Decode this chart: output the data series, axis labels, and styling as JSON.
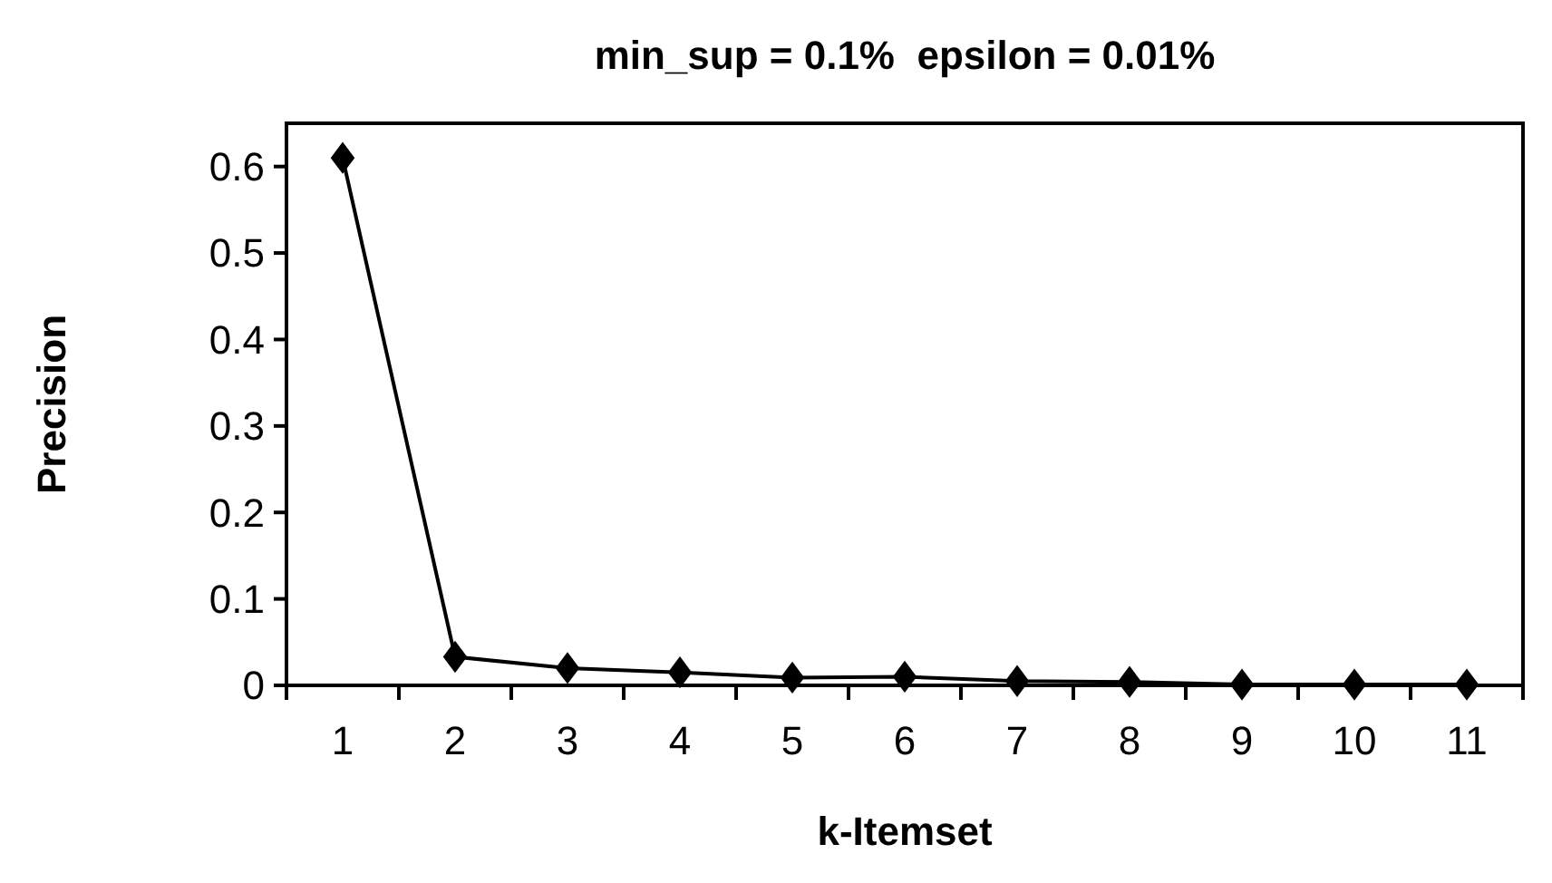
{
  "chart_data": {
    "type": "line",
    "title": "min_sup = 0.1%  epsilon = 0.01%",
    "xlabel": "k-Itemset",
    "ylabel": "Precision",
    "categories": [
      "1",
      "2",
      "3",
      "4",
      "5",
      "6",
      "7",
      "8",
      "9",
      "10",
      "11"
    ],
    "series": [
      {
        "color": "#000000",
        "values": [
          0.61,
          0.033,
          0.02,
          0.015,
          0.009,
          0.01,
          0.005,
          0.004,
          0.001,
          0.001,
          0.001
        ]
      }
    ],
    "ylim": [
      0,
      0.65
    ],
    "yticks": [
      0,
      0.1,
      0.2,
      0.3,
      0.4,
      0.5,
      0.6
    ],
    "marker": "diamond",
    "line_style": "solid",
    "grid": false
  }
}
